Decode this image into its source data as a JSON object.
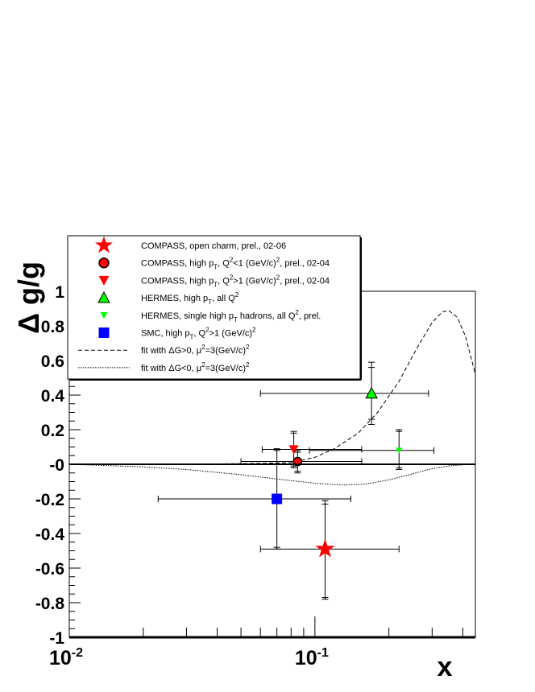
{
  "chart_data": {
    "type": "scatter",
    "xlabel": "x",
    "ylabel": "Δ g/g",
    "xscale": "log",
    "xlim": [
      0.01,
      0.45
    ],
    "ylim": [
      -1,
      1
    ],
    "x_tick_labels": [
      {
        "value": 0.01,
        "base": "10",
        "exp": "-2"
      },
      {
        "value": 0.1,
        "base": "10",
        "exp": "-1"
      }
    ],
    "y_ticks": [
      -1,
      -0.8,
      -0.6,
      -0.4,
      -0.2,
      0,
      0.2,
      0.4,
      0.6,
      0.8,
      1
    ],
    "y_tick_labels": [
      "-1",
      "-0.8",
      "-0.6",
      "-0.4",
      "-0.2",
      "-0",
      "0.2",
      "0.4",
      "0.6",
      "0.8",
      "1"
    ],
    "grid": false,
    "legend_position": "top-left",
    "legend": [
      {
        "marker": "star",
        "color": "#ff0000",
        "parts": [
          [
            "COMPASS, open charm, prel., 02-06",
            ""
          ]
        ]
      },
      {
        "marker": "circle",
        "color": "#ff0000",
        "parts": [
          [
            "COMPASS, high p",
            ""
          ],
          [
            "T",
            "sub"
          ],
          [
            ", Q",
            ""
          ],
          [
            "2",
            "sup"
          ],
          [
            "<1 (GeV/c)",
            ""
          ],
          [
            "2",
            "sup"
          ],
          [
            ", prel., 02-04",
            ""
          ]
        ]
      },
      {
        "marker": "triangle-down",
        "color": "#ff0000",
        "parts": [
          [
            "COMPASS, high p",
            ""
          ],
          [
            "T",
            "sub"
          ],
          [
            ", Q",
            ""
          ],
          [
            "2",
            "sup"
          ],
          [
            ">1 (GeV/c)",
            ""
          ],
          [
            "2",
            "sup"
          ],
          [
            ", prel., 02-04",
            ""
          ]
        ]
      },
      {
        "marker": "triangle-up",
        "color": "#00ff00",
        "parts": [
          [
            "HERMES, high p",
            ""
          ],
          [
            "T",
            "sub"
          ],
          [
            ", all Q",
            ""
          ],
          [
            "2",
            "sup"
          ]
        ]
      },
      {
        "marker": "triangle-down-small",
        "color": "#00ff00",
        "parts": [
          [
            "HERMES, single high p",
            ""
          ],
          [
            "T",
            "sub"
          ],
          [
            " hadrons, all Q",
            ""
          ],
          [
            "2",
            "sup"
          ],
          [
            ", prel.",
            ""
          ]
        ]
      },
      {
        "marker": "square",
        "color": "#0000ff",
        "parts": [
          [
            "SMC, high p",
            ""
          ],
          [
            "T",
            "sub"
          ],
          [
            ", Q",
            ""
          ],
          [
            "2",
            "sup"
          ],
          [
            ">1 (GeV/c)",
            ""
          ],
          [
            "2",
            "sup"
          ]
        ]
      },
      {
        "marker": "line-dashed",
        "color": "#000000",
        "parts": [
          [
            "fit with  ΔG>0, μ",
            ""
          ],
          [
            "2",
            "sup"
          ],
          [
            "=3(GeV/c)",
            ""
          ],
          [
            "2",
            "sup"
          ]
        ]
      },
      {
        "marker": "line-dotted",
        "color": "#000000",
        "parts": [
          [
            "fit with  ΔG<0, μ",
            ""
          ],
          [
            "2",
            "sup"
          ],
          [
            "=3(GeV/c)",
            ""
          ],
          [
            "2",
            "sup"
          ]
        ]
      }
    ],
    "series": [
      {
        "marker": "triangle-up",
        "color": "#00ff00",
        "size": 14,
        "points": [
          {
            "x": 0.17,
            "y": 0.41,
            "xlo": 0.06,
            "xhi": 0.29,
            "ylo": 0.23,
            "yhi": 0.59,
            "ysyslo": 0.26,
            "ysyshi": 0.56
          }
        ]
      },
      {
        "marker": "triangle-down",
        "color": "#ff0000",
        "size": 12,
        "points": [
          {
            "x": 0.082,
            "y": 0.086,
            "xlo": 0.061,
            "xhi": 0.155,
            "ylo": -0.02,
            "yhi": 0.19,
            "ysyslo": -0.01,
            "ysyshi": 0.18
          }
        ]
      },
      {
        "marker": "circle",
        "color": "#ff0000",
        "size": 12,
        "points": [
          {
            "x": 0.085,
            "y": 0.016,
            "xlo": 0.05,
            "xhi": 0.155,
            "ylo": -0.05,
            "yhi": 0.08,
            "ysyslo": -0.04,
            "ysyshi": 0.07
          }
        ]
      },
      {
        "marker": "triangle-down-small",
        "color": "#00ff00",
        "size": 8,
        "points": [
          {
            "x": 0.22,
            "y": 0.08,
            "xlo": 0.095,
            "xhi": 0.305,
            "ylo": -0.03,
            "yhi": 0.2,
            "ysyslo": -0.02,
            "ysyshi": 0.19
          }
        ]
      },
      {
        "marker": "square",
        "color": "#0000ff",
        "size": 13,
        "points": [
          {
            "x": 0.07,
            "y": -0.2,
            "xlo": 0.023,
            "xhi": 0.14,
            "ylo": -0.49,
            "yhi": 0.09,
            "ysyslo": -0.48,
            "ysyshi": 0.08
          }
        ]
      },
      {
        "marker": "star",
        "color": "#ff0000",
        "size": 22,
        "points": [
          {
            "x": 0.11,
            "y": -0.49,
            "xlo": 0.06,
            "xhi": 0.22,
            "ylo": -0.78,
            "yhi": -0.21,
            "ysyslo": -0.77,
            "ysyshi": -0.23
          }
        ]
      }
    ],
    "curves": [
      {
        "style": "dashed",
        "name": "fit with ΔG>0",
        "points": [
          [
            0.01,
            0.0
          ],
          [
            0.03,
            0.0
          ],
          [
            0.06,
            0.005
          ],
          [
            0.08,
            0.01
          ],
          [
            0.1,
            0.04
          ],
          [
            0.12,
            0.09
          ],
          [
            0.15,
            0.18
          ],
          [
            0.18,
            0.3
          ],
          [
            0.22,
            0.48
          ],
          [
            0.26,
            0.67
          ],
          [
            0.3,
            0.82
          ],
          [
            0.33,
            0.88
          ],
          [
            0.35,
            0.89
          ],
          [
            0.38,
            0.85
          ],
          [
            0.41,
            0.74
          ],
          [
            0.45,
            0.52
          ]
        ]
      },
      {
        "style": "dotted",
        "name": "fit with ΔG<0",
        "points": [
          [
            0.01,
            0.0
          ],
          [
            0.02,
            -0.015
          ],
          [
            0.03,
            -0.03
          ],
          [
            0.05,
            -0.06
          ],
          [
            0.07,
            -0.085
          ],
          [
            0.1,
            -0.11
          ],
          [
            0.13,
            -0.12
          ],
          [
            0.16,
            -0.115
          ],
          [
            0.2,
            -0.09
          ],
          [
            0.25,
            -0.055
          ],
          [
            0.3,
            -0.025
          ],
          [
            0.35,
            -0.01
          ],
          [
            0.4,
            -0.003
          ],
          [
            0.45,
            0.0
          ]
        ]
      }
    ]
  }
}
